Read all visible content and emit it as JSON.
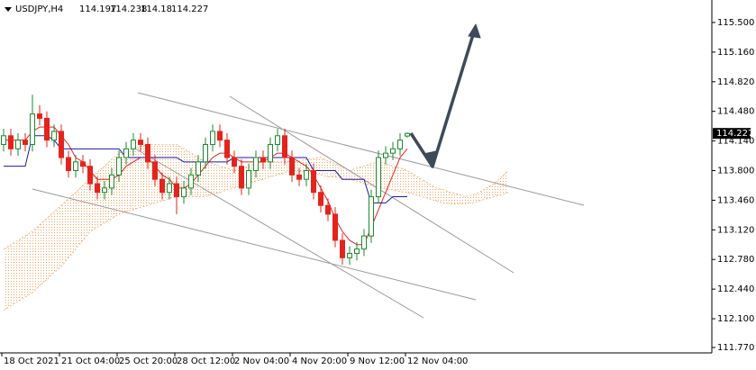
{
  "chart_data": {
    "type": "candlestick",
    "title": "USDJPY,H4",
    "categories": [
      "18 Oct 2021",
      null,
      null,
      null,
      null,
      null,
      null,
      null,
      "21 Oct 04:00",
      null,
      null,
      null,
      null,
      null,
      null,
      null,
      "25 Oct 20:00",
      null,
      null,
      null,
      null,
      null,
      null,
      null,
      "28 Oct 12:00",
      null,
      null,
      null,
      null,
      null,
      null,
      null,
      "2 Nov 04:00",
      null,
      null,
      null,
      null,
      null,
      null,
      null,
      "4 Nov 20:00",
      null,
      null,
      null,
      null,
      null,
      null,
      null,
      "9 Nov 12:00",
      null,
      null,
      null,
      null,
      null,
      null,
      null,
      "12 Nov 04:00"
    ],
    "open": [
      114.1,
      114.2,
      114.05,
      114.15,
      114.1,
      114.45,
      114.4,
      114.15,
      114.25,
      113.95,
      113.8,
      113.9,
      113.85,
      113.65,
      113.55,
      113.6,
      113.75,
      113.95,
      114.05,
      114.15,
      114.1,
      113.9,
      113.7,
      113.55,
      113.65,
      113.5,
      113.6,
      113.75,
      113.9,
      114.1,
      114.25,
      114.15,
      113.95,
      113.85,
      113.6,
      113.8,
      113.95,
      113.9,
      114.1,
      114.2,
      113.95,
      113.75,
      113.7,
      113.8,
      113.55,
      113.4,
      113.3,
      113.0,
      112.8,
      112.85,
      112.9,
      113.05,
      113.5,
      113.95,
      114.0,
      114.05,
      114.197
    ],
    "high": [
      114.28,
      114.28,
      114.23,
      114.23,
      114.67,
      114.55,
      114.48,
      114.33,
      114.33,
      114.03,
      113.98,
      113.98,
      113.93,
      113.73,
      113.68,
      113.83,
      114.03,
      114.13,
      114.23,
      114.23,
      114.18,
      113.98,
      113.78,
      113.73,
      113.73,
      113.68,
      113.83,
      113.98,
      114.18,
      114.33,
      114.33,
      114.23,
      114.03,
      113.93,
      113.88,
      114.03,
      114.03,
      114.18,
      114.28,
      114.28,
      114.03,
      113.83,
      113.88,
      113.88,
      113.63,
      113.48,
      113.38,
      113.08,
      112.93,
      112.98,
      113.13,
      113.58,
      114.03,
      114.08,
      114.13,
      114.23,
      114.238
    ],
    "low": [
      114.02,
      113.97,
      113.97,
      114.02,
      114.02,
      114.32,
      114.07,
      114.07,
      113.87,
      113.72,
      113.72,
      113.77,
      113.57,
      113.47,
      113.47,
      113.52,
      113.67,
      113.87,
      113.97,
      114.02,
      113.82,
      113.62,
      113.47,
      113.47,
      113.3,
      113.42,
      113.52,
      113.67,
      113.82,
      114.02,
      114.07,
      113.87,
      113.77,
      113.52,
      113.52,
      113.72,
      113.82,
      113.82,
      114.02,
      113.87,
      113.67,
      113.62,
      113.62,
      113.47,
      113.32,
      113.22,
      112.92,
      112.72,
      112.72,
      112.77,
      112.82,
      112.97,
      113.42,
      113.87,
      113.92,
      113.97,
      114.18
    ],
    "close": [
      114.2,
      114.05,
      114.15,
      114.1,
      114.45,
      114.4,
      114.15,
      114.25,
      113.95,
      113.8,
      113.9,
      113.85,
      113.65,
      113.55,
      113.6,
      113.75,
      113.95,
      114.05,
      114.15,
      114.1,
      113.9,
      113.7,
      113.55,
      113.65,
      113.5,
      113.6,
      113.75,
      113.9,
      114.1,
      114.25,
      114.15,
      113.95,
      113.85,
      113.6,
      113.8,
      113.95,
      113.9,
      114.1,
      114.2,
      113.95,
      113.75,
      113.7,
      113.8,
      113.55,
      113.4,
      113.3,
      113.0,
      112.8,
      112.85,
      112.9,
      113.05,
      113.5,
      113.95,
      114.0,
      114.05,
      114.15,
      114.227
    ],
    "up_color": "#1b8a2e",
    "down_color": "#e3241c",
    "overlays": [
      {
        "color": "#e3241c",
        "values": [
          114.15,
          114.15,
          114.15,
          114.15,
          114.25,
          114.3,
          114.3,
          114.3,
          114.2,
          114.1,
          113.95,
          113.9,
          113.8,
          113.7,
          113.7,
          113.7,
          113.75,
          113.85,
          113.9,
          113.95,
          113.95,
          113.85,
          113.75,
          113.7,
          113.6,
          113.6,
          113.65,
          113.75,
          113.85,
          113.95,
          114.0,
          114.0,
          113.95,
          113.9,
          113.9,
          113.9,
          113.9,
          113.95,
          114.0,
          114.0,
          113.95,
          113.9,
          113.85,
          113.75,
          113.6,
          113.45,
          113.25,
          113.1,
          113.0,
          112.95,
          112.95,
          113.15,
          113.35,
          113.55,
          113.75,
          113.95,
          114.05
        ]
      },
      {
        "color": "#1a1ab0",
        "values": [
          113.85,
          113.85,
          113.85,
          113.85,
          114.2,
          114.2,
          114.2,
          114.15,
          114.05,
          114.05,
          114.05,
          114.05,
          114.05,
          114.05,
          114.05,
          114.05,
          114.05,
          113.95,
          113.95,
          113.95,
          113.95,
          113.95,
          113.95,
          113.95,
          113.95,
          113.9,
          113.9,
          113.9,
          113.9,
          113.9,
          113.9,
          113.9,
          113.95,
          113.95,
          113.95,
          113.95,
          113.95,
          113.95,
          113.95,
          113.95,
          113.95,
          113.95,
          113.95,
          113.8,
          113.8,
          113.8,
          113.8,
          113.7,
          113.7,
          113.7,
          113.7,
          113.43,
          113.43,
          113.43,
          113.5,
          113.5,
          113.5
        ]
      }
    ],
    "cloud": {
      "color": "#f4a460",
      "span_a": [
        112.9,
        112.95,
        113.0,
        113.05,
        113.1,
        113.18,
        113.25,
        113.33,
        113.4,
        113.48,
        113.55,
        113.63,
        113.7,
        113.78,
        113.85,
        113.93,
        114.0,
        114.03,
        114.05,
        114.08,
        114.1,
        114.1,
        114.1,
        114.1,
        114.1,
        114.05,
        114.0,
        113.95,
        113.9,
        113.88,
        113.85,
        113.83,
        113.8,
        113.83,
        113.85,
        113.88,
        113.9,
        113.9,
        113.9,
        113.9,
        113.9,
        113.91,
        113.93,
        113.94,
        113.95,
        113.91,
        113.88,
        113.84,
        113.8,
        113.83,
        113.85,
        113.88,
        113.9,
        113.88,
        113.85,
        113.83,
        113.8,
        113.75,
        113.7,
        113.65,
        113.6,
        113.58,
        113.55,
        113.53,
        113.5,
        113.52,
        113.55,
        113.6,
        113.65,
        113.72,
        113.8
      ],
      "span_b": [
        112.2,
        112.25,
        112.3,
        112.35,
        112.4,
        112.48,
        112.55,
        112.63,
        112.7,
        112.8,
        112.9,
        113.0,
        113.1,
        113.15,
        113.2,
        113.25,
        113.3,
        113.33,
        113.35,
        113.38,
        113.4,
        113.43,
        113.45,
        113.48,
        113.5,
        113.5,
        113.5,
        113.5,
        113.5,
        113.53,
        113.55,
        113.58,
        113.6,
        113.63,
        113.65,
        113.68,
        113.7,
        113.73,
        113.75,
        113.78,
        113.8,
        113.79,
        113.78,
        113.76,
        113.75,
        113.73,
        113.73,
        113.71,
        113.7,
        113.68,
        113.65,
        113.63,
        113.6,
        113.59,
        113.58,
        113.56,
        113.55,
        113.53,
        113.5,
        113.48,
        113.45,
        113.43,
        113.42,
        113.42,
        113.42,
        113.43,
        113.45,
        113.48,
        113.5,
        113.52,
        113.55
      ]
    },
    "ylim": [
      111.708,
      115.758
    ],
    "yticks": [
      {
        "value": 115.5,
        "label": "115.500"
      },
      {
        "value": 115.16,
        "label": "115.160"
      },
      {
        "value": 114.82,
        "label": "114.820"
      },
      {
        "value": 114.48,
        "label": "114.480"
      },
      {
        "value": 114.14,
        "label": "114.140"
      },
      {
        "value": 113.8,
        "label": "113.800"
      },
      {
        "value": 113.46,
        "label": "113.460"
      },
      {
        "value": 113.12,
        "label": "113.120"
      },
      {
        "value": 112.78,
        "label": "112.780"
      },
      {
        "value": 112.44,
        "label": "112.440"
      },
      {
        "value": 112.1,
        "label": "112.100"
      },
      {
        "value": 111.77,
        "label": "111.770"
      }
    ]
  }
}
